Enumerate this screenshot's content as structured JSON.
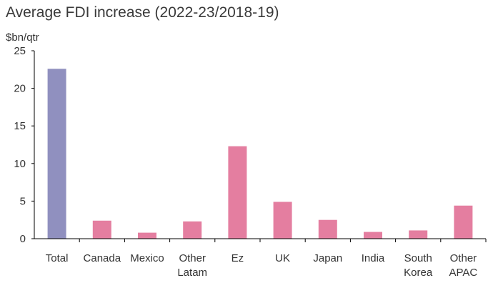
{
  "chart_data": {
    "type": "bar",
    "title": "Average FDI increase (2022-23/2018-19)",
    "ylabel": "$bn/qtr",
    "xlabel": "",
    "ylim": [
      0,
      25
    ],
    "yticks": [
      0,
      5,
      10,
      15,
      20,
      25
    ],
    "grid": false,
    "categories": [
      [
        "Total"
      ],
      [
        "Canada"
      ],
      [
        "Mexico"
      ],
      [
        "Other",
        "Latam"
      ],
      [
        "Ez"
      ],
      [
        "UK"
      ],
      [
        "Japan"
      ],
      [
        "India"
      ],
      [
        "South",
        "Korea"
      ],
      [
        "Other",
        "APAC"
      ]
    ],
    "values": [
      22.6,
      2.4,
      0.8,
      2.3,
      12.3,
      4.9,
      2.5,
      0.9,
      1.1,
      4.4
    ],
    "colors": [
      "#9090bf",
      "#e47ea0",
      "#e47ea0",
      "#e47ea0",
      "#e47ea0",
      "#e47ea0",
      "#e47ea0",
      "#e47ea0",
      "#e47ea0",
      "#e47ea0"
    ],
    "axis_color": "#000000"
  }
}
